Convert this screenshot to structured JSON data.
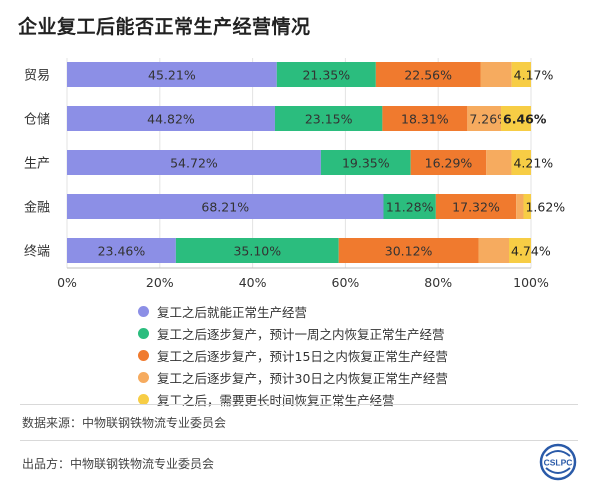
{
  "title": "企业复工后能否正常生产经营情况",
  "chart_data": {
    "type": "bar",
    "orientation": "horizontal",
    "stacked": true,
    "categories": [
      "贸易",
      "仓储",
      "生产",
      "金融",
      "终端"
    ],
    "series": [
      {
        "name": "复工之后就能正常生产经营",
        "color": "#8c8fe6",
        "values": [
          45.21,
          44.82,
          54.72,
          68.21,
          23.46
        ],
        "labels": [
          "45.21%",
          "44.82%",
          "54.72%",
          "68.21%",
          "23.46%"
        ]
      },
      {
        "name": "复工之后逐步复产，预计一周之内恢复正常生产经营",
        "color": "#2bbd7e",
        "values": [
          21.35,
          23.15,
          19.35,
          11.28,
          35.1
        ],
        "labels": [
          "21.35%",
          "23.15%",
          "19.35%",
          "11.28%",
          "35.10%"
        ]
      },
      {
        "name": "复工之后逐步复产，预计15日之内恢复正常生产经营",
        "color": "#f07a2e",
        "values": [
          22.56,
          18.31,
          16.29,
          17.32,
          30.12
        ],
        "labels": [
          "22.56%",
          "18.31%",
          "16.29%",
          "17.32%",
          "30.12%"
        ]
      },
      {
        "name": "复工之后逐步复产，预计30日之内恢复正常生产经营",
        "color": "#f6ab5f",
        "values": [
          6.71,
          7.26,
          5.43,
          1.57,
          6.58
        ],
        "labels": [
          "",
          "7.26%",
          "",
          "",
          ""
        ]
      },
      {
        "name": "复工之后，需要更长时间恢复正常生产经营",
        "color": "#f7cd45",
        "values": [
          4.17,
          6.46,
          4.21,
          1.62,
          4.74
        ],
        "labels": [
          "4.17%",
          "6.46%",
          "4.21%",
          "1.62%",
          "4.74%"
        ]
      }
    ],
    "xlim": [
      0,
      100
    ],
    "xticks": [
      "0%",
      "20%",
      "40%",
      "60%",
      "80%",
      "100%"
    ],
    "grid": true,
    "legend_position": "bottom"
  },
  "source_line": "数据来源：中物联钢铁物流专业委员会",
  "publisher_line": "出品方：中物联钢铁物流专业委员会",
  "logo_text": "CSLPC"
}
